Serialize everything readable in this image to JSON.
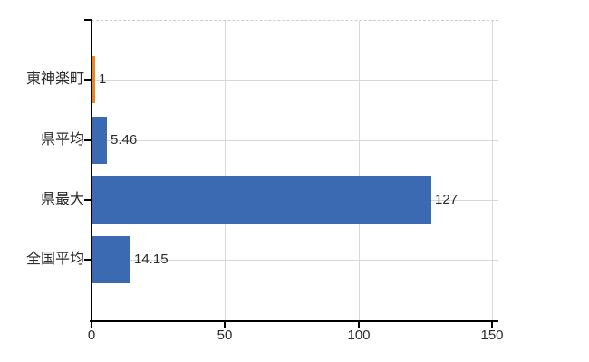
{
  "chart_data": {
    "type": "bar",
    "orientation": "horizontal",
    "title": "",
    "xlabel": "",
    "ylabel": "",
    "categories": [
      "東神楽町",
      "県平均",
      "県最大",
      "全国平均"
    ],
    "values": [
      1,
      5.46,
      127,
      14.15
    ],
    "value_labels": [
      "1",
      "5.46",
      "127",
      "14.15"
    ],
    "bar_colors": [
      "#ec8426",
      "#3b6ab2",
      "#3b6ab2",
      "#3b6ab2"
    ],
    "xlim": [
      0,
      150
    ],
    "xticks": [
      0,
      50,
      100,
      150
    ],
    "xtick_labels": [
      "0",
      "50",
      "100",
      "150"
    ],
    "grid": true,
    "legend": false
  },
  "colors": {
    "bar_blue": "#3b6ab2",
    "bar_orange": "#ec8426",
    "gridline": "#d6dad6",
    "plot_top_border": "#c9cdc9",
    "axis": "#000000",
    "text": "#2b2b2b",
    "background": "#ffffff"
  }
}
